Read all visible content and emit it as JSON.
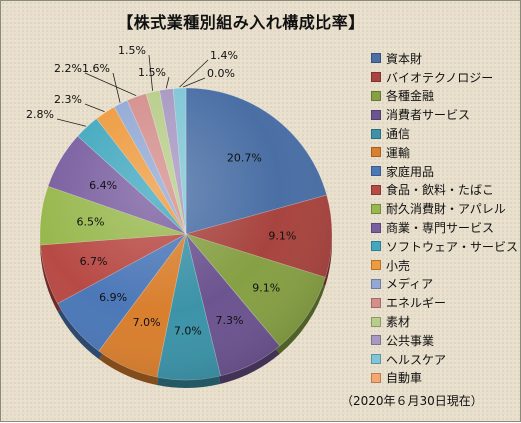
{
  "chart_data": {
    "type": "pie",
    "title": "【株式業種別組み入れ構成比率】",
    "footnote": "（2020年６月30日現在）",
    "legend_position": "right",
    "slices": [
      {
        "label": "資本財",
        "value": 20.7,
        "value_label": "20.7%",
        "color": "#4a6fa5"
      },
      {
        "label": "バイオテクノロジー",
        "value": 9.1,
        "value_label": "9.1%",
        "color": "#a8443f"
      },
      {
        "label": "各種金融",
        "value": 9.1,
        "value_label": "9.1%",
        "color": "#86a044"
      },
      {
        "label": "消費者サービス",
        "value": 7.3,
        "value_label": "7.3%",
        "color": "#6c5490"
      },
      {
        "label": "通信",
        "value": 7.0,
        "value_label": "7.0%",
        "color": "#3c93a8"
      },
      {
        "label": "運輸",
        "value": 7.0,
        "value_label": "7.0%",
        "color": "#d97f2e"
      },
      {
        "label": "家庭用品",
        "value": 6.9,
        "value_label": "6.9%",
        "color": "#4c78b8"
      },
      {
        "label": "食品・飲料・たばこ",
        "value": 6.7,
        "value_label": "6.7%",
        "color": "#b84a45"
      },
      {
        "label": "耐久消費財・アパレル",
        "value": 6.5,
        "value_label": "6.5%",
        "color": "#98b84e"
      },
      {
        "label": "商業・専門サービス",
        "value": 6.4,
        "value_label": "6.4%",
        "color": "#7a5fa0"
      },
      {
        "label": "ソフトウェア・サービス",
        "value": 2.8,
        "value_label": "2.8%",
        "color": "#42a8bf"
      },
      {
        "label": "小売",
        "value": 2.3,
        "value_label": "2.3%",
        "color": "#ee9a3e"
      },
      {
        "label": "メディア",
        "value": 1.6,
        "value_label": "1.6%",
        "color": "#92a9d4"
      },
      {
        "label": "エネルギー",
        "value": 2.2,
        "value_label": "2.2%",
        "color": "#d48f8c"
      },
      {
        "label": "素材",
        "value": 1.5,
        "value_label": "1.5%",
        "color": "#b8cd8a"
      },
      {
        "label": "公共事業",
        "value": 1.5,
        "value_label": "1.5%",
        "color": "#a898c2"
      },
      {
        "label": "ヘルスケア",
        "value": 1.4,
        "value_label": "1.4%",
        "color": "#80c6d6"
      },
      {
        "label": "自動車",
        "value": 0.0,
        "value_label": "0.0%",
        "color": "#f4a870"
      }
    ]
  }
}
